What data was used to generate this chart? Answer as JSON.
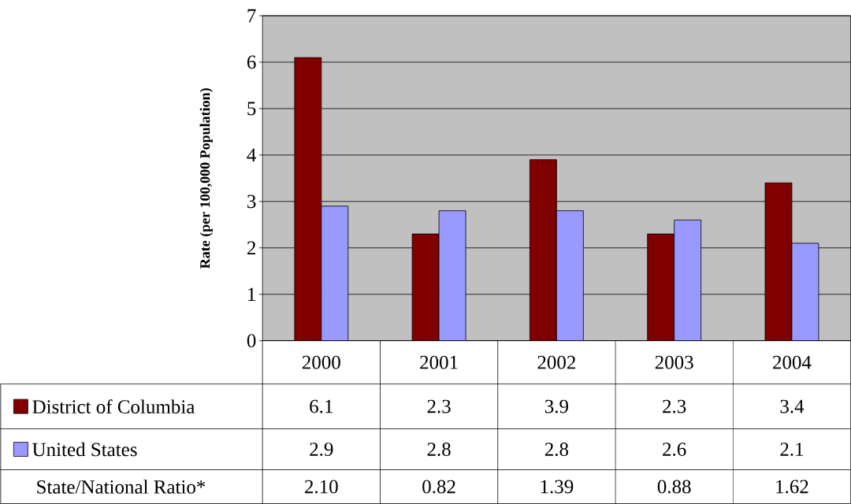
{
  "chart_data": {
    "type": "bar",
    "ylabel": "Rate (per 100,000 Population)",
    "categories": [
      "2000",
      "2001",
      "2002",
      "2003",
      "2004"
    ],
    "series": [
      {
        "name": "District of Columbia",
        "color": "#800000",
        "values": [
          6.1,
          2.3,
          3.9,
          2.3,
          3.4
        ]
      },
      {
        "name": "United States",
        "color": "#9999ff",
        "values": [
          2.9,
          2.8,
          2.8,
          2.6,
          2.1
        ]
      }
    ],
    "ylim": [
      0,
      7
    ],
    "yticks": [
      0,
      1,
      2,
      3,
      4,
      5,
      6,
      7
    ],
    "grid": "y",
    "legend": "bottom",
    "data_labels": true,
    "annotations": [
      "State/National Ratio*",
      "2.10",
      "0.82",
      "1.39",
      "0.88",
      "1.62"
    ]
  }
}
